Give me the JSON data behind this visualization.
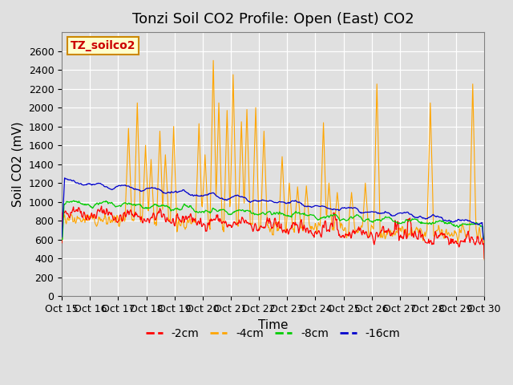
{
  "title": "Tonzi Soil CO2 Profile: Open (East) CO2",
  "xlabel": "Time",
  "ylabel": "Soil CO2 (mV)",
  "ylim": [
    0,
    2800
  ],
  "yticks": [
    0,
    200,
    400,
    600,
    800,
    1000,
    1200,
    1400,
    1600,
    1800,
    2000,
    2200,
    2400,
    2600
  ],
  "xtick_labels": [
    "Oct 15",
    "Oct 16",
    "Oct 17",
    "Oct 18",
    "Oct 19",
    "Oct 20",
    "Oct 21",
    "Oct 22",
    "Oct 23",
    "Oct 24",
    "Oct 25",
    "Oct 26",
    "Oct 27",
    "Oct 28",
    "Oct 29",
    "Oct 30"
  ],
  "bg_color": "#e0e0e0",
  "plot_bg_color": "#e0e0e0",
  "legend_label": "TZ_soilco2",
  "legend_bg": "#ffffcc",
  "legend_border": "#cc8800",
  "series": [
    {
      "label": "-2cm",
      "color": "#ff0000"
    },
    {
      "label": "-4cm",
      "color": "#ffa500"
    },
    {
      "label": "-8cm",
      "color": "#00cc00"
    },
    {
      "label": "-16cm",
      "color": "#0000cc"
    }
  ],
  "title_fontsize": 13,
  "axis_label_fontsize": 11,
  "tick_fontsize": 9
}
